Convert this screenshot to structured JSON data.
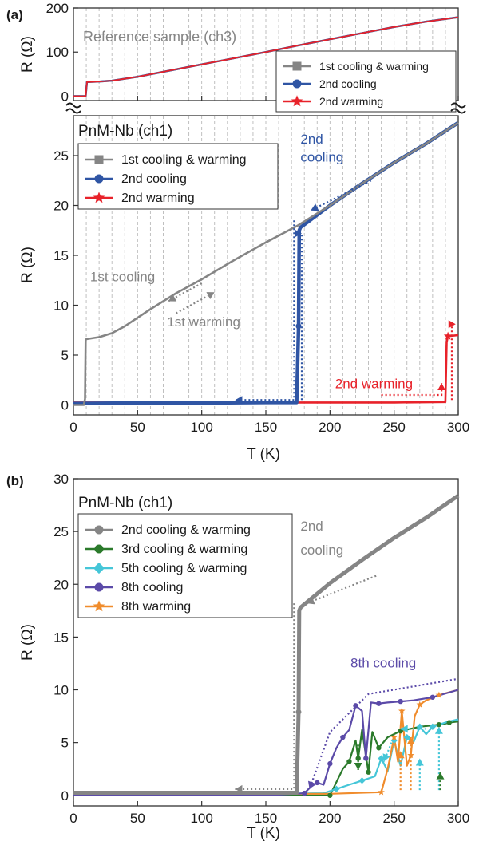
{
  "colors": {
    "gray": "#858585",
    "blue": "#2f55a4",
    "red": "#e8222a",
    "green": "#2b7a2b",
    "cyan": "#45c6d8",
    "purple": "#5b4aa8",
    "orange": "#f08c2c",
    "grid": "#b9b9b9"
  },
  "chart_data": [
    {
      "panel_label": "(a)",
      "type": "line",
      "title": "",
      "xlabel": "",
      "ylabel": "R (Ω)",
      "xlim": [
        0,
        300
      ],
      "ylim": [
        -10,
        200
      ],
      "yticks": [
        0,
        100,
        200
      ],
      "grid": "dashed vertical",
      "annotation": "Reference sample (ch3)",
      "legend_position": "lower-right",
      "series": [
        {
          "name": "1st cooling & warming",
          "marker": "square",
          "color": "gray",
          "x": [
            0,
            9.5,
            10.5,
            20,
            30,
            50,
            75,
            100,
            125,
            150,
            175,
            200,
            225,
            250,
            275,
            300
          ],
          "y": [
            0,
            0,
            32,
            33,
            35,
            44,
            58,
            72,
            86,
            100,
            115,
            129,
            143,
            157,
            169,
            179
          ]
        },
        {
          "name": "2nd cooling",
          "marker": "circle",
          "color": "blue",
          "x": [
            0,
            9.5,
            10.5,
            20,
            30,
            50,
            75,
            100,
            125,
            150,
            175,
            200,
            225,
            250,
            275,
            300
          ],
          "y": [
            0,
            0,
            32,
            33,
            35,
            44,
            58,
            72,
            86,
            100,
            115,
            129,
            143,
            157,
            169,
            179
          ]
        },
        {
          "name": "2nd warming",
          "marker": "star",
          "color": "red",
          "x": [
            0,
            9.5,
            10.5,
            20,
            30,
            50,
            75,
            100,
            125,
            150,
            175,
            200,
            225,
            250,
            275,
            300
          ],
          "y": [
            0,
            0,
            32,
            33,
            35,
            44,
            58,
            72,
            86,
            100,
            115,
            129,
            143,
            157,
            169,
            179
          ]
        }
      ]
    },
    {
      "panel_label": "",
      "type": "line",
      "title": "PnM-Nb (ch1)",
      "xlabel": "T (K)",
      "ylabel": "R (Ω)",
      "xlim": [
        0,
        300
      ],
      "ylim": [
        -1,
        29
      ],
      "xticks": [
        0,
        50,
        100,
        150,
        200,
        250,
        300
      ],
      "yticks": [
        0,
        5,
        10,
        15,
        20,
        25
      ],
      "grid": "dashed vertical",
      "legend_position": "top-left",
      "annotations": [
        "2nd cooling",
        "1st cooling",
        "1st warming",
        "2nd warming"
      ],
      "series": [
        {
          "name": "1st cooling & warming",
          "marker": "square",
          "color": "gray",
          "x": [
            0,
            8,
            9,
            9.5,
            10,
            20,
            30,
            40,
            60,
            80,
            100,
            125,
            150,
            175,
            200,
            225,
            250,
            275,
            300
          ],
          "y": [
            0,
            0,
            0.6,
            6.5,
            6.6,
            6.8,
            7.2,
            7.9,
            9.6,
            11.2,
            12.6,
            14.5,
            16.3,
            18,
            20,
            22.2,
            24.3,
            26.2,
            28.3
          ]
        },
        {
          "name": "2nd cooling",
          "marker": "circle",
          "color": "blue",
          "x": [
            0,
            50,
            100,
            150,
            174,
            175.5,
            176,
            177,
            200,
            225,
            250,
            275,
            300
          ],
          "y": [
            0.15,
            0.2,
            0.2,
            0.25,
            0.25,
            7.9,
            17.5,
            17.8,
            20,
            22.2,
            24.3,
            26.2,
            28.3
          ]
        },
        {
          "name": "2nd warming",
          "marker": "star",
          "color": "red",
          "x": [
            0,
            50,
            100,
            150,
            200,
            250,
            290,
            291,
            292,
            300
          ],
          "y": [
            0.25,
            0.25,
            0.25,
            0.25,
            0.25,
            0.25,
            0.3,
            6.3,
            6.9,
            7.0
          ]
        }
      ]
    },
    {
      "panel_label": "(b)",
      "type": "line",
      "title": "PnM-Nb (ch1)",
      "xlabel": "T (K)",
      "ylabel": "R (Ω)",
      "xlim": [
        0,
        300
      ],
      "ylim": [
        -1,
        30
      ],
      "xticks": [
        0,
        50,
        100,
        150,
        200,
        250,
        300
      ],
      "yticks": [
        0,
        5,
        10,
        15,
        20,
        25,
        30
      ],
      "grid": "none",
      "legend_position": "top-left",
      "annotations": [
        "2nd cooling",
        "8th cooling"
      ],
      "series": [
        {
          "name": "2nd cooling & warming",
          "marker": "circle",
          "color": "gray",
          "x": [
            0,
            100,
            174,
            175.5,
            176,
            177,
            200,
            225,
            250,
            275,
            300
          ],
          "y": [
            0.25,
            0.25,
            0.25,
            7.9,
            17.5,
            17.8,
            20.1,
            22.3,
            24.4,
            26.3,
            28.4
          ]
        },
        {
          "name": "3rd cooling & warming",
          "marker": "circle",
          "color": "green",
          "x": [
            0,
            150,
            200,
            210,
            215,
            220,
            222,
            225,
            230,
            233,
            238,
            245,
            255,
            270,
            285,
            290,
            293,
            300
          ],
          "y": [
            0,
            0,
            0,
            2.5,
            3.2,
            5.2,
            3.5,
            6.2,
            2.2,
            6.0,
            4.5,
            5.5,
            6.1,
            6.5,
            6.7,
            6.8,
            6.9,
            7.0
          ]
        },
        {
          "name": "5th cooling & warming",
          "marker": "diamond",
          "color": "cyan",
          "x": [
            0,
            195,
            205,
            215,
            225,
            235,
            240,
            245,
            250,
            255,
            260,
            265,
            270,
            275,
            280,
            290,
            300
          ],
          "y": [
            0,
            0.2,
            0.6,
            1.0,
            1.4,
            1.8,
            3.5,
            2.3,
            5.2,
            2.8,
            5.5,
            5.0,
            6.5,
            5.8,
            6.5,
            6.9,
            7.2
          ]
        },
        {
          "name": "8th cooling",
          "marker": "circle",
          "color": "purple",
          "x": [
            0,
            150,
            180,
            185,
            190,
            195,
            200,
            205,
            210,
            215,
            220,
            225,
            228,
            232,
            238,
            245,
            255,
            265,
            280,
            300
          ],
          "y": [
            0,
            0,
            0.2,
            0.8,
            1.2,
            1.0,
            3.0,
            4.5,
            5.5,
            6.2,
            8.5,
            8.0,
            3.5,
            8.8,
            8.7,
            8.8,
            8.9,
            9.0,
            9.3,
            10.0
          ]
        },
        {
          "name": "8th warming",
          "marker": "star",
          "color": "orange",
          "x": [
            0,
            200,
            240,
            245,
            250,
            253,
            256,
            260,
            263,
            266,
            270,
            275,
            285,
            300
          ],
          "y": [
            0.15,
            0.15,
            0.3,
            2.5,
            5.5,
            3.2,
            8.0,
            2.8,
            3.8,
            7.5,
            8.6,
            9.0,
            9.5,
            10.0
          ]
        }
      ]
    }
  ]
}
